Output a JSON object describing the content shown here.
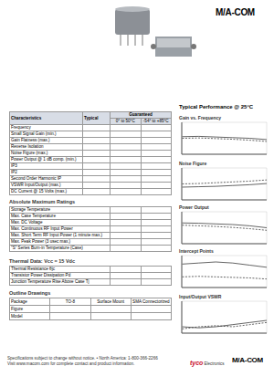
{
  "header": {
    "logo": "M/A-COM"
  },
  "characteristics": {
    "columns": [
      "Characteristics",
      "Typical",
      "Guaranteed"
    ],
    "subcolumns": [
      "0° to 50°C",
      "-54° to +85°C"
    ],
    "rows": [
      "Frequency",
      "Small Signal Gain (min.)",
      "Gain Flatness (max.)",
      "Reverse Isolation",
      "Noise Figure (max.)",
      "Power Output @ 1 dB comp. (min.)",
      "IP3",
      "IP2",
      "Second Order Harmonic IP",
      "VSWR Input/Output (max.)",
      "DC Current @ 15 Volts (max.)"
    ]
  },
  "absolute_maximum_ratings": {
    "title": "Absolute Maximum Ratings",
    "rows": [
      "Storage Temperature",
      "Max. Case Temperature",
      "Max. DC Voltage",
      "Max. Continuous RF Input Power",
      "Max. Short Term RF Input Power (1 minute max.)",
      "Max. Peak Power (3 usec max.)",
      "\"S\" Series Burn-in Temperature (Case)"
    ]
  },
  "thermal_data": {
    "title": "Thermal Data: Vcc = 15 Vdc",
    "rows": [
      "Thermal Resistance θjc",
      "Transistor Power Dissipation Pd",
      "Junction Temperature Rise Above Case Tj"
    ]
  },
  "outline_drawings": {
    "title": "Outline Drawings",
    "row_labels": [
      "Package",
      "Figure",
      "Model"
    ],
    "columns": [
      "TO-8",
      "Surface Mount",
      "SMA Connectorized"
    ]
  },
  "typical_performance": {
    "title": "Typical Performance @ 25°C"
  },
  "chart_data": [
    {
      "type": "line",
      "title": "Gain vs. Frequency",
      "x": [
        5,
        200,
        400,
        600,
        800,
        1000
      ],
      "xlim": [
        0,
        1000
      ],
      "xticks": [
        0,
        250,
        500,
        750,
        1000
      ],
      "ylim": [
        10,
        20
      ],
      "yticks": [
        10,
        12,
        14,
        16,
        18,
        20
      ],
      "grid": true,
      "tick_labels": false,
      "series": [
        {
          "color": "#222222",
          "line_style": "solid",
          "values": [
            15.5,
            15.6,
            15.4,
            15.2,
            15.0,
            14.6
          ]
        },
        {
          "color": "#222222",
          "line_style": "dashed",
          "values": [
            15.0,
            15.1,
            14.9,
            14.7,
            14.4,
            14.0
          ]
        }
      ]
    },
    {
      "type": "line",
      "title": "Noise Figure",
      "x": [
        5,
        200,
        400,
        600,
        800,
        1000
      ],
      "xlim": [
        0,
        1000
      ],
      "xticks": [
        0,
        250,
        500,
        750,
        1000
      ],
      "ylim": [
        0,
        8
      ],
      "yticks": [
        0,
        2,
        4,
        6,
        8
      ],
      "grid": true,
      "tick_labels": false,
      "series": [
        {
          "color": "#222222",
          "line_style": "solid",
          "values": [
            3.2,
            3.3,
            3.4,
            3.6,
            3.8,
            4.1
          ]
        },
        {
          "color": "#222222",
          "line_style": "dashed",
          "values": [
            4.0,
            4.1,
            4.3,
            4.5,
            4.7,
            5.0
          ]
        }
      ]
    },
    {
      "type": "line",
      "title": "Power Output",
      "x": [
        5,
        200,
        400,
        600,
        800,
        1000
      ],
      "xlim": [
        0,
        1000
      ],
      "xticks": [
        0,
        250,
        500,
        750,
        1000
      ],
      "ylim": [
        10,
        20
      ],
      "yticks": [
        10,
        12,
        14,
        16,
        18,
        20
      ],
      "grid": true,
      "tick_labels": false,
      "series": [
        {
          "color": "#222222",
          "line_style": "solid",
          "values": [
            16.5,
            16.4,
            16.2,
            16.0,
            15.6,
            15.0
          ]
        },
        {
          "color": "#222222",
          "line_style": "dashed",
          "values": [
            15.8,
            15.6,
            15.4,
            15.1,
            14.7,
            14.2
          ]
        }
      ]
    },
    {
      "type": "line",
      "title": "Intercept Points",
      "x": [
        5,
        200,
        400,
        600,
        800,
        1000
      ],
      "xlim": [
        0,
        1000
      ],
      "xticks": [
        0,
        250,
        500,
        750,
        1000
      ],
      "ylim": [
        20,
        50
      ],
      "yticks": [
        20,
        30,
        40,
        50
      ],
      "grid": true,
      "tick_labels": false,
      "series": [
        {
          "color": "#222222",
          "line_style": "solid",
          "values": [
            42,
            43,
            44,
            43,
            41,
            39
          ]
        },
        {
          "color": "#222222",
          "line_style": "dashed",
          "values": [
            30,
            30.5,
            30,
            29.5,
            29,
            28
          ]
        }
      ]
    },
    {
      "type": "line",
      "title": "Input/Output VSWR",
      "x": [
        5,
        200,
        400,
        600,
        800,
        1000
      ],
      "xlim": [
        0,
        1000
      ],
      "xticks": [
        0,
        250,
        500,
        750,
        1000
      ],
      "ylim": [
        1,
        2.5
      ],
      "yticks": [
        1,
        1.5,
        2,
        2.5
      ],
      "grid": true,
      "tick_labels": false,
      "series": [
        {
          "color": "#222222",
          "line_style": "solid",
          "values": [
            1.3,
            1.25,
            1.3,
            1.4,
            1.5,
            1.6
          ]
        },
        {
          "color": "#222222",
          "line_style": "dashed",
          "values": [
            1.2,
            1.3,
            1.35,
            1.3,
            1.4,
            1.5
          ]
        }
      ]
    }
  ],
  "footer": {
    "lines": [
      "Specifications subject to change without notice. • North America: 1-800-366-2266",
      "Visit www.macom.com for complete contact and product information."
    ],
    "brand": "tyco",
    "brand_sub": "Electronics",
    "logo": "M/A-COM"
  }
}
